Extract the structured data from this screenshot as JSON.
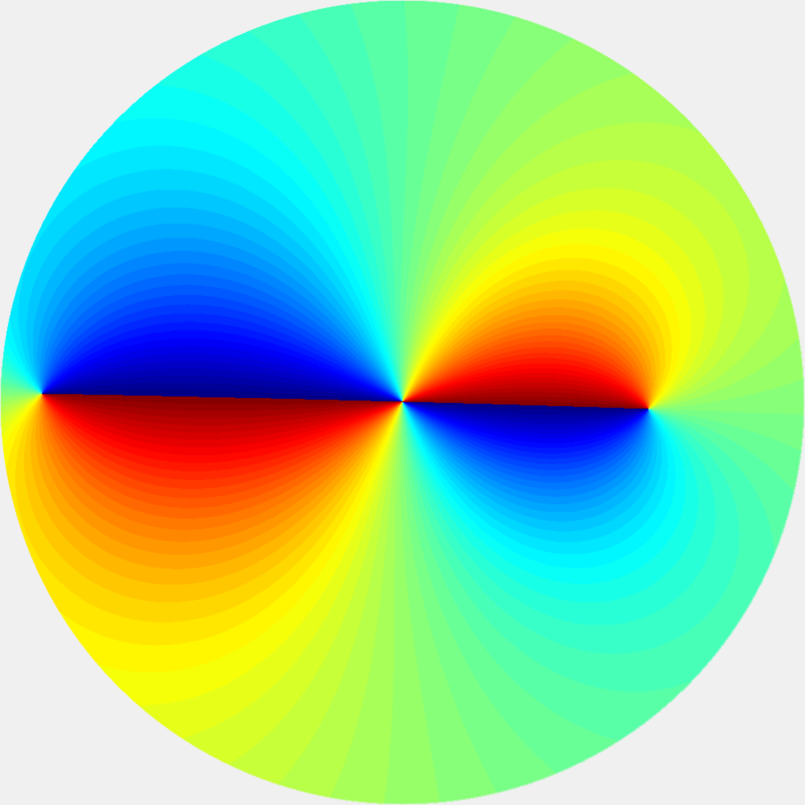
{
  "image": {
    "subject": "disc-colored-by-field-phase",
    "colormap": "jet",
    "band_count": 64,
    "background_color": "#f0f0f0",
    "colormap_stops": [
      "#00007f",
      "#0000ff",
      "#00ffff",
      "#7fff7f",
      "#ffff00",
      "#ff0000",
      "#7f0000"
    ]
  }
}
